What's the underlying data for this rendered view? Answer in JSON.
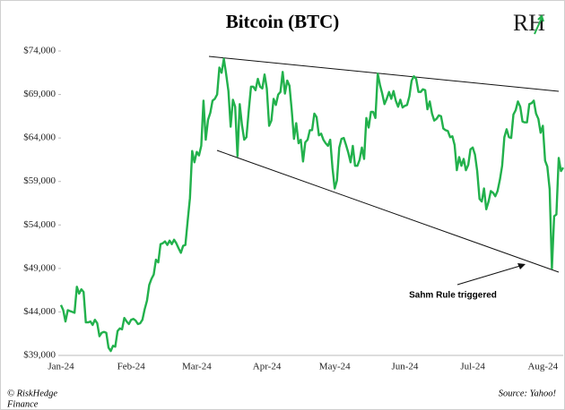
{
  "chart_data": {
    "type": "line",
    "title": "Bitcoin (BTC)",
    "logo": "RH",
    "categories": [
      "Jan-24",
      null,
      null,
      null,
      null,
      null,
      null,
      null,
      null,
      null,
      null,
      null,
      null,
      null,
      null,
      null,
      null,
      null,
      null,
      null,
      null,
      null,
      null,
      null,
      null,
      null,
      null,
      null,
      null,
      null,
      null,
      "Feb-24",
      null,
      null,
      null,
      null,
      null,
      null,
      null,
      null,
      null,
      null,
      null,
      null,
      null,
      null,
      null,
      null,
      null,
      null,
      null,
      null,
      null,
      null,
      null,
      null,
      null,
      null,
      null,
      null,
      "Mar-24",
      null,
      null,
      null,
      null,
      null,
      null,
      null,
      null,
      null,
      null,
      null,
      null,
      null,
      null,
      null,
      null,
      null,
      null,
      null,
      null,
      null,
      null,
      null,
      null,
      null,
      null,
      null,
      null,
      null,
      null,
      "Apr-24",
      null,
      null,
      null,
      null,
      null,
      null,
      null,
      null,
      null,
      null,
      null,
      null,
      null,
      null,
      null,
      null,
      null,
      null,
      null,
      null,
      null,
      null,
      null,
      null,
      null,
      null,
      null,
      null,
      null,
      "May-24",
      null,
      null,
      null,
      null,
      null,
      null,
      null,
      null,
      null,
      null,
      null,
      null,
      null,
      null,
      null,
      null,
      null,
      null,
      null,
      null,
      null,
      null,
      null,
      null,
      null,
      null,
      null,
      null,
      null,
      null,
      "Jun-24",
      null,
      null,
      null,
      null,
      null,
      null,
      null,
      null,
      null,
      null,
      null,
      null,
      null,
      null,
      null,
      null,
      null,
      null,
      null,
      null,
      null,
      null,
      null,
      null,
      null,
      null,
      null,
      null,
      null,
      "Jul-24",
      null,
      null,
      null,
      null,
      null,
      null,
      null,
      null,
      null,
      null,
      null,
      null,
      null,
      null,
      null,
      null,
      null,
      null,
      null,
      null,
      null,
      null,
      null,
      null,
      null,
      null,
      null,
      null,
      null,
      null,
      "Aug-24",
      null,
      null,
      null,
      null,
      null,
      null,
      null,
      null,
      null
    ],
    "values": [
      44800,
      44200,
      42900,
      44200,
      44100,
      44000,
      43900,
      46900,
      46100,
      46600,
      46300,
      42800,
      42800,
      42900,
      42500,
      43100,
      42700,
      41200,
      41600,
      41700,
      41600,
      39900,
      39500,
      40100,
      40000,
      41800,
      42100,
      42000,
      43300,
      42900,
      42600,
      43100,
      43200,
      43000,
      42600,
      42700,
      43100,
      44300,
      45300,
      47100,
      47800,
      48300,
      50000,
      49700,
      51800,
      51900,
      52100,
      51700,
      52200,
      51800,
      52300,
      51900,
      51300,
      50800,
      51600,
      51700,
      54500,
      57100,
      62500,
      61200,
      62400,
      62000,
      63100,
      68300,
      63800,
      66100,
      66900,
      68300,
      68500,
      69000,
      72100,
      71500,
      73100,
      71400,
      69400,
      65300,
      68400,
      67600,
      61900,
      67900,
      65500,
      63800,
      64100,
      67200,
      69900,
      69900,
      69500,
      70800,
      69900,
      69700,
      71300,
      69700,
      65400,
      66000,
      68500,
      67800,
      69000,
      69300,
      71600,
      69100,
      70600,
      70000,
      67200,
      63900,
      65700,
      63400,
      63800,
      61300,
      63500,
      63800,
      64900,
      64900,
      66800,
      66400,
      64300,
      64500,
      63800,
      63400,
      63100,
      63800,
      60600,
      58200,
      59100,
      62900,
      63900,
      64000,
      63200,
      62300,
      61200,
      63100,
      60800,
      60800,
      61500,
      62900,
      61600,
      66300,
      65200,
      67000,
      67000,
      66300,
      71400,
      70100,
      69100,
      67900,
      68500,
      69300,
      68500,
      69400,
      68300,
      67600,
      68400,
      67500,
      67700,
      67800,
      68800,
      70600,
      71100,
      70800,
      69300,
      69300,
      69600,
      69500,
      67300,
      68200,
      66800,
      66000,
      66200,
      66600,
      66500,
      65100,
      64900,
      64800,
      64100,
      64200,
      63200,
      60300,
      61800,
      60800,
      61600,
      60300,
      60900,
      62700,
      62900,
      62100,
      60200,
      57000,
      56700,
      58200,
      55800,
      56700,
      57900,
      57700,
      57300,
      57900,
      59200,
      60800,
      64100,
      65000,
      64100,
      64000,
      66700,
      67200,
      68200,
      67600,
      65900,
      65800,
      65800,
      67900,
      68000,
      68300,
      66800,
      66200,
      64600,
      65400,
      61400,
      60700,
      58100,
      49000,
      55000,
      55200,
      61700,
      60200,
      60600
    ],
    "color": "#22b14c",
    "ylim": [
      39000,
      74000
    ],
    "yticks": [
      {
        "value": 39000,
        "label": "$39,000"
      },
      {
        "value": 44000,
        "label": "$44,000"
      },
      {
        "value": 49000,
        "label": "$49,000"
      },
      {
        "value": 54000,
        "label": "$54,000"
      },
      {
        "value": 59000,
        "label": "$59,000"
      },
      {
        "value": 64000,
        "label": "$64,000"
      },
      {
        "value": 69000,
        "label": "$69,000"
      },
      {
        "value": 74000,
        "label": "$74,000"
      }
    ],
    "annotation": "Sahm Rule triggered",
    "footer_left": [
      "© RiskHedge",
      "Finance"
    ],
    "footer_right": "Source: Yahoo!"
  }
}
